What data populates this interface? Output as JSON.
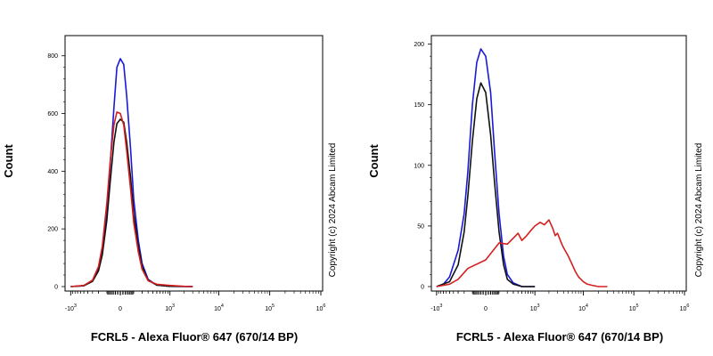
{
  "chart_data": [
    {
      "type": "line",
      "panel": "left",
      "xlabel": "FCRL5 - Alexa Fluor® 647 (670/14 BP)",
      "ylabel": "Count",
      "copyright": "Copyright (c) 2024 Abcam Limited",
      "x_scale": "biexponential",
      "x_ticks": [
        {
          "value": -1000,
          "base": "-10",
          "exp": "3"
        },
        {
          "value": 0,
          "base": "0",
          "exp": ""
        },
        {
          "value": 1000,
          "base": "10",
          "exp": "3"
        },
        {
          "value": 10000,
          "base": "10",
          "exp": "4"
        },
        {
          "value": 100000,
          "base": "10",
          "exp": "5"
        },
        {
          "value": 1000000,
          "base": "10",
          "exp": "6"
        }
      ],
      "y_ticks": [
        0,
        200,
        400,
        600,
        800
      ],
      "ylim": [
        0,
        870
      ],
      "series": [
        {
          "color": "#1a1ad6",
          "x": [
            -1000,
            -500,
            -300,
            -200,
            -150,
            -100,
            -70,
            -40,
            -20,
            0,
            20,
            40,
            70,
            100,
            150,
            200,
            300,
            500,
            1000,
            3000
          ],
          "y": [
            0,
            3,
            20,
            60,
            120,
            260,
            420,
            620,
            760,
            790,
            770,
            660,
            480,
            300,
            160,
            80,
            25,
            5,
            1,
            0
          ]
        },
        {
          "color": "#111111",
          "x": [
            -1000,
            -500,
            -300,
            -200,
            -150,
            -100,
            -70,
            -40,
            -20,
            0,
            20,
            40,
            70,
            100,
            150,
            200,
            300,
            500,
            1000,
            3000
          ],
          "y": [
            0,
            3,
            18,
            55,
            110,
            230,
            360,
            500,
            565,
            580,
            570,
            500,
            380,
            250,
            140,
            70,
            22,
            5,
            1,
            0
          ]
        },
        {
          "color": "#d42020",
          "x": [
            -1000,
            -500,
            -300,
            -200,
            -150,
            -100,
            -70,
            -40,
            -20,
            0,
            20,
            40,
            70,
            100,
            150,
            200,
            300,
            500,
            1000,
            2000,
            3000
          ],
          "y": [
            0,
            4,
            22,
            70,
            140,
            290,
            430,
            560,
            605,
            600,
            560,
            470,
            340,
            220,
            120,
            60,
            20,
            8,
            4,
            1,
            0
          ]
        }
      ]
    },
    {
      "type": "line",
      "panel": "right",
      "xlabel": "FCRL5 - Alexa Fluor® 647 (670/14 BP)",
      "ylabel": "Count",
      "copyright": "Copyright (c) 2024 Abcam Limited",
      "x_scale": "biexponential",
      "x_ticks": [
        {
          "value": -1000,
          "base": "-10",
          "exp": "3"
        },
        {
          "value": 0,
          "base": "0",
          "exp": ""
        },
        {
          "value": 1000,
          "base": "10",
          "exp": "3"
        },
        {
          "value": 10000,
          "base": "10",
          "exp": "4"
        },
        {
          "value": 100000,
          "base": "10",
          "exp": "5"
        },
        {
          "value": 1000000,
          "base": "10",
          "exp": "6"
        }
      ],
      "y_ticks": [
        0,
        50,
        100,
        150,
        200
      ],
      "ylim": [
        0,
        207
      ],
      "series": [
        {
          "color": "#1a1ad6",
          "x": [
            -1000,
            -700,
            -500,
            -300,
            -200,
            -150,
            -100,
            -60,
            -30,
            0,
            30,
            60,
            100,
            150,
            200,
            300,
            500,
            1000
          ],
          "y": [
            0,
            2,
            8,
            30,
            60,
            95,
            150,
            185,
            196,
            190,
            160,
            110,
            60,
            25,
            10,
            3,
            0,
            0
          ]
        },
        {
          "color": "#111111",
          "x": [
            -1000,
            -500,
            -300,
            -200,
            -150,
            -100,
            -60,
            -30,
            0,
            30,
            60,
            100,
            150,
            200,
            300,
            500,
            1000
          ],
          "y": [
            0,
            4,
            18,
            45,
            75,
            120,
            155,
            168,
            160,
            125,
            85,
            45,
            18,
            6,
            2,
            0,
            0
          ]
        },
        {
          "color": "#d42020",
          "x": [
            -1000,
            -500,
            -300,
            -150,
            0,
            100,
            200,
            300,
            400,
            500,
            650,
            800,
            1000,
            1300,
            1600,
            2000,
            2400,
            2700,
            3000,
            3300,
            3600,
            4000,
            5000,
            6000,
            7000,
            8000,
            10000,
            12000,
            15000,
            20000,
            30000
          ],
          "y": [
            0,
            2,
            6,
            15,
            22,
            36,
            35,
            40,
            44,
            38,
            42,
            46,
            50,
            53,
            51,
            55,
            48,
            42,
            44,
            40,
            36,
            32,
            25,
            18,
            12,
            8,
            4,
            2,
            1,
            0,
            0
          ]
        }
      ]
    }
  ]
}
